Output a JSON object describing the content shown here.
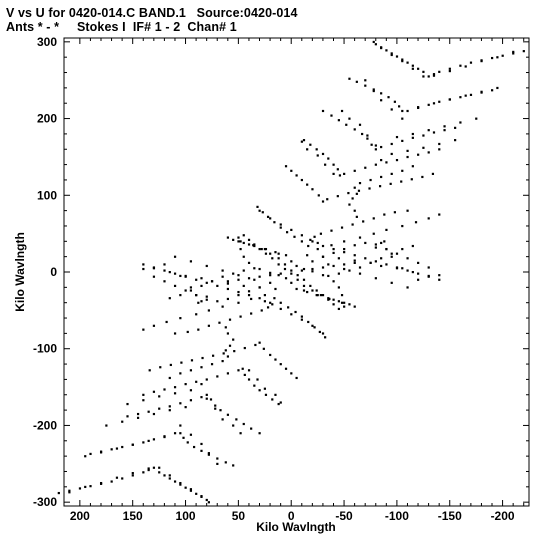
{
  "header": {
    "line1": "V vs U for 0420-014.C BAND.1   Source:0420-014",
    "line2": "Ants * - *     Stokes I  IF# 1 - 2  Chan# 1"
  },
  "chart_data": {
    "type": "scatter",
    "title": "V vs U for 0420-014.C BAND.1   Source:0420-014",
    "subtitle": "Ants * - *     Stokes I  IF# 1 - 2  Chan# 1",
    "xlabel": "Kilo Wavlngth",
    "ylabel": "Kilo Wavlngth",
    "xlim": [
      215,
      -225
    ],
    "ylim": [
      -305,
      305
    ],
    "x_reversed": true,
    "xticks": [
      200,
      150,
      100,
      50,
      0,
      -50,
      -100,
      -150,
      -200
    ],
    "xtick_labels": [
      "200",
      "150",
      "100",
      "50",
      "0",
      "-50",
      "-100",
      "-150",
      "-200"
    ],
    "yticks": [
      300,
      200,
      100,
      0,
      -100,
      -200,
      -300
    ],
    "ytick_labels": [
      "300",
      "200",
      "100",
      "0",
      "-100",
      "-200",
      "-300"
    ],
    "grid": false,
    "marker_color": "#000000",
    "series": [
      {
        "points": [
          [
            -80,
            297
          ],
          [
            -85,
            293
          ],
          [
            -90,
            289
          ],
          [
            -95,
            285
          ],
          [
            -100,
            281
          ],
          [
            -105,
            277
          ],
          [
            -110,
            273
          ],
          [
            -115,
            269
          ],
          [
            -120,
            265
          ],
          [
            -125,
            261
          ],
          [
            -130,
            255
          ],
          [
            -135,
            258
          ],
          [
            -140,
            261
          ],
          [
            -150,
            265
          ],
          [
            -160,
            269
          ],
          [
            -170,
            273
          ],
          [
            -180,
            276
          ],
          [
            -190,
            279
          ],
          [
            -200,
            282
          ],
          [
            -210,
            285
          ],
          [
            -220,
            288
          ],
          [
            -55,
            252
          ],
          [
            -62,
            248
          ],
          [
            -70,
            243
          ],
          [
            -78,
            238
          ],
          [
            -85,
            233
          ],
          [
            -92,
            228
          ],
          [
            -98,
            222
          ],
          [
            -102,
            216
          ],
          [
            -105,
            210
          ],
          [
            -110,
            210
          ],
          [
            -120,
            214
          ],
          [
            -130,
            218
          ],
          [
            -140,
            222
          ],
          [
            -150,
            225
          ],
          [
            -160,
            228
          ],
          [
            -170,
            231
          ],
          [
            -180,
            234
          ],
          [
            -190,
            237
          ],
          [
            -30,
            210
          ],
          [
            -38,
            204
          ],
          [
            -45,
            198
          ],
          [
            -52,
            192
          ],
          [
            -60,
            186
          ],
          [
            -67,
            180
          ],
          [
            -72,
            174
          ],
          [
            -76,
            166
          ],
          [
            -80,
            160
          ],
          [
            -85,
            163
          ],
          [
            -95,
            167
          ],
          [
            -105,
            171
          ],
          [
            -115,
            175
          ],
          [
            -125,
            178
          ],
          [
            -135,
            182
          ],
          [
            -145,
            185
          ],
          [
            -155,
            188
          ],
          [
            -12,
            172
          ],
          [
            -18,
            166
          ],
          [
            -24,
            160
          ],
          [
            -30,
            154
          ],
          [
            -35,
            148
          ],
          [
            -40,
            140
          ],
          [
            -44,
            134
          ],
          [
            -46,
            126
          ],
          [
            -50,
            128
          ],
          [
            -60,
            132
          ],
          [
            -70,
            136
          ],
          [
            -80,
            140
          ],
          [
            -90,
            143
          ],
          [
            -100,
            146
          ],
          [
            -110,
            150
          ],
          [
            -120,
            153
          ],
          [
            -130,
            156
          ],
          [
            -140,
            160
          ],
          [
            5,
            138
          ],
          [
            0,
            132
          ],
          [
            -5,
            126
          ],
          [
            -10,
            120
          ],
          [
            -15,
            114
          ],
          [
            -20,
            108
          ],
          [
            -26,
            100
          ],
          [
            -30,
            92
          ],
          [
            -34,
            95
          ],
          [
            -44,
            99
          ],
          [
            -54,
            103
          ],
          [
            -64,
            106
          ],
          [
            -74,
            109
          ],
          [
            -84,
            112
          ],
          [
            -94,
            115
          ],
          [
            -104,
            118
          ],
          [
            -114,
            121
          ],
          [
            -124,
            124
          ],
          [
            -134,
            128
          ],
          [
            32,
            85
          ],
          [
            27,
            78
          ],
          [
            22,
            72
          ],
          [
            16,
            65
          ],
          [
            10,
            58
          ],
          [
            4,
            52
          ],
          [
            -3,
            46
          ],
          [
            -10,
            40
          ],
          [
            -16,
            34
          ],
          [
            -18,
            42
          ],
          [
            -22,
            46
          ],
          [
            -28,
            50
          ],
          [
            -38,
            54
          ],
          [
            -48,
            58
          ],
          [
            -58,
            62
          ],
          [
            -68,
            66
          ],
          [
            -78,
            70
          ],
          [
            -88,
            75
          ],
          [
            -98,
            78
          ],
          [
            -110,
            80
          ],
          [
            55,
            42
          ],
          [
            45,
            38
          ],
          [
            35,
            34
          ],
          [
            25,
            30
          ],
          [
            15,
            26
          ],
          [
            5,
            22
          ],
          [
            0,
            14
          ],
          [
            -5,
            8
          ],
          [
            -12,
            4
          ],
          [
            -20,
            1
          ],
          [
            -30,
            -4
          ],
          [
            -40,
            -12
          ],
          [
            -45,
            -20
          ],
          [
            -48,
            -30
          ],
          [
            -50,
            -40
          ],
          [
            45,
            48
          ],
          [
            40,
            42
          ],
          [
            35,
            36
          ],
          [
            28,
            30
          ],
          [
            20,
            24
          ],
          [
            12,
            18
          ],
          [
            6,
            10
          ],
          [
            0,
            2
          ],
          [
            -6,
            -4
          ],
          [
            -12,
            -10
          ],
          [
            -18,
            -18
          ],
          [
            -24,
            -24
          ],
          [
            -30,
            -30
          ],
          [
            -40,
            -36
          ],
          [
            -50,
            -45
          ],
          [
            140,
            10
          ],
          [
            130,
            6
          ],
          [
            120,
            2
          ],
          [
            110,
            -2
          ],
          [
            100,
            -6
          ],
          [
            90,
            -10
          ],
          [
            80,
            -14
          ],
          [
            70,
            -18
          ],
          [
            60,
            -22
          ],
          [
            50,
            -26
          ],
          [
            40,
            -30
          ],
          [
            30,
            -34
          ],
          [
            25,
            -38
          ],
          [
            120,
            10
          ],
          [
            105,
            -5
          ],
          [
            95,
            -20
          ],
          [
            90,
            -30
          ],
          [
            88,
            -40
          ],
          [
            85,
            -38
          ],
          [
            80,
            -32
          ],
          [
            -30,
            20
          ],
          [
            -40,
            25
          ],
          [
            -50,
            30
          ],
          [
            -60,
            35
          ],
          [
            -70,
            38
          ],
          [
            -80,
            36
          ],
          [
            -90,
            30
          ],
          [
            -100,
            24
          ],
          [
            -110,
            18
          ],
          [
            -120,
            12
          ],
          [
            -130,
            6
          ],
          [
            -140,
            -4
          ],
          [
            -10,
            2
          ],
          [
            -20,
            4
          ],
          [
            -30,
            6
          ],
          [
            -40,
            8
          ],
          [
            -50,
            10
          ],
          [
            -60,
            12
          ],
          [
            130,
            5
          ],
          [
            115,
            0
          ],
          [
            100,
            -5
          ],
          [
            85,
            -8
          ],
          [
            75,
            -12
          ],
          [
            60,
            -15
          ],
          [
            45,
            -18
          ],
          [
            30,
            -20
          ],
          [
            15,
            -22
          ],
          [
            110,
            20
          ],
          [
            95,
            14
          ],
          [
            80,
            8
          ],
          [
            65,
            2
          ],
          [
            50,
            -4
          ],
          [
            35,
            -10
          ],
          [
            20,
            -14
          ],
          [
            60,
            45
          ],
          [
            48,
            40
          ],
          [
            36,
            35
          ],
          [
            24,
            30
          ],
          [
            12,
            24
          ],
          [
            -35,
            -5
          ],
          [
            -45,
            -2
          ],
          [
            -55,
            2
          ],
          [
            -65,
            6
          ],
          [
            -75,
            12
          ],
          [
            -85,
            18
          ],
          [
            -95,
            24
          ],
          [
            -105,
            30
          ],
          [
            -115,
            34
          ],
          [
            20,
            -40
          ],
          [
            10,
            -48
          ],
          [
            0,
            -55
          ],
          [
            -10,
            -62
          ],
          [
            -20,
            -70
          ],
          [
            -30,
            -80
          ],
          [
            140,
            -75
          ],
          [
            130,
            -70
          ],
          [
            118,
            -65
          ],
          [
            105,
            -60
          ],
          [
            90,
            -55
          ],
          [
            78,
            -50
          ],
          [
            65,
            -45
          ],
          [
            50,
            -40
          ],
          [
            38,
            -35
          ],
          [
            25,
            -30
          ],
          [
            115,
            -138
          ],
          [
            105,
            -132
          ],
          [
            95,
            -128
          ],
          [
            85,
            -124
          ],
          [
            75,
            -120
          ],
          [
            65,
            -116
          ],
          [
            60,
            -110
          ],
          [
            62,
            -102
          ],
          [
            58,
            -96
          ],
          [
            55,
            -88
          ],
          [
            60,
            -80
          ],
          [
            62,
            -72
          ],
          [
            40,
            -128
          ],
          [
            32,
            -140
          ],
          [
            25,
            -152
          ],
          [
            15,
            -160
          ],
          [
            10,
            -170
          ],
          [
            155,
            -172
          ],
          [
            140,
            -167
          ],
          [
            125,
            -162
          ],
          [
            110,
            -158
          ],
          [
            95,
            -154
          ],
          [
            85,
            -146
          ],
          [
            80,
            -165
          ],
          [
            72,
            -178
          ],
          [
            65,
            -192
          ],
          [
            55,
            -200
          ],
          [
            48,
            -210
          ],
          [
            175,
            -200
          ],
          [
            160,
            -195
          ],
          [
            145,
            -190
          ],
          [
            130,
            -185
          ],
          [
            115,
            -180
          ],
          [
            100,
            -176
          ],
          [
            105,
            -200
          ],
          [
            95,
            -212
          ],
          [
            85,
            -224
          ],
          [
            78,
            -236
          ],
          [
            70,
            -250
          ],
          [
            195,
            -240
          ],
          [
            180,
            -235
          ],
          [
            165,
            -230
          ],
          [
            150,
            -225
          ],
          [
            135,
            -220
          ],
          [
            120,
            -215
          ],
          [
            125,
            -255
          ],
          [
            115,
            -265
          ],
          [
            105,
            -275
          ],
          [
            95,
            -283
          ],
          [
            85,
            -292
          ],
          [
            78,
            -300
          ],
          [
            210,
            -287
          ],
          [
            195,
            -280
          ],
          [
            180,
            -275
          ],
          [
            165,
            -268
          ],
          [
            150,
            -262
          ],
          [
            135,
            -256
          ]
        ]
      }
    ]
  }
}
